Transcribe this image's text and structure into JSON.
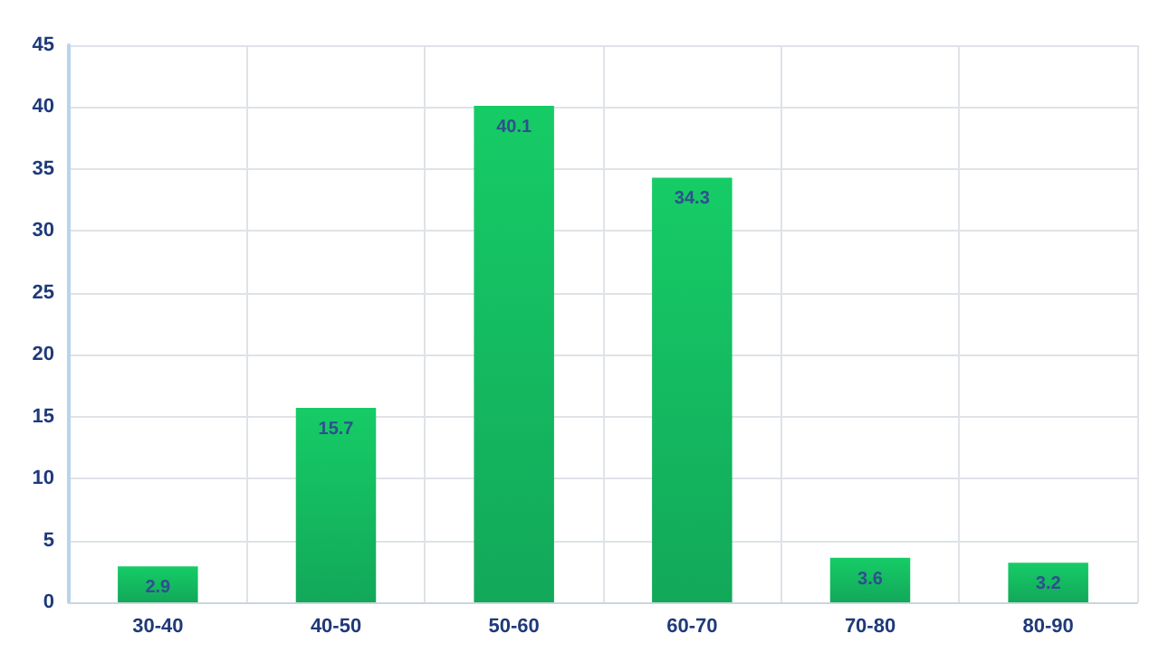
{
  "chart_data": {
    "type": "bar",
    "categories": [
      "30-40",
      "40-50",
      "50-60",
      "60-70",
      "70-80",
      "80-90"
    ],
    "values": [
      2.9,
      15.7,
      40.1,
      34.3,
      3.6,
      3.2
    ],
    "color": "#12a85a",
    "ylim": [
      0,
      45
    ],
    "yticks": [
      0,
      5,
      10,
      15,
      20,
      25,
      30,
      35,
      40,
      45
    ],
    "grid": true,
    "data_labels": true
  }
}
